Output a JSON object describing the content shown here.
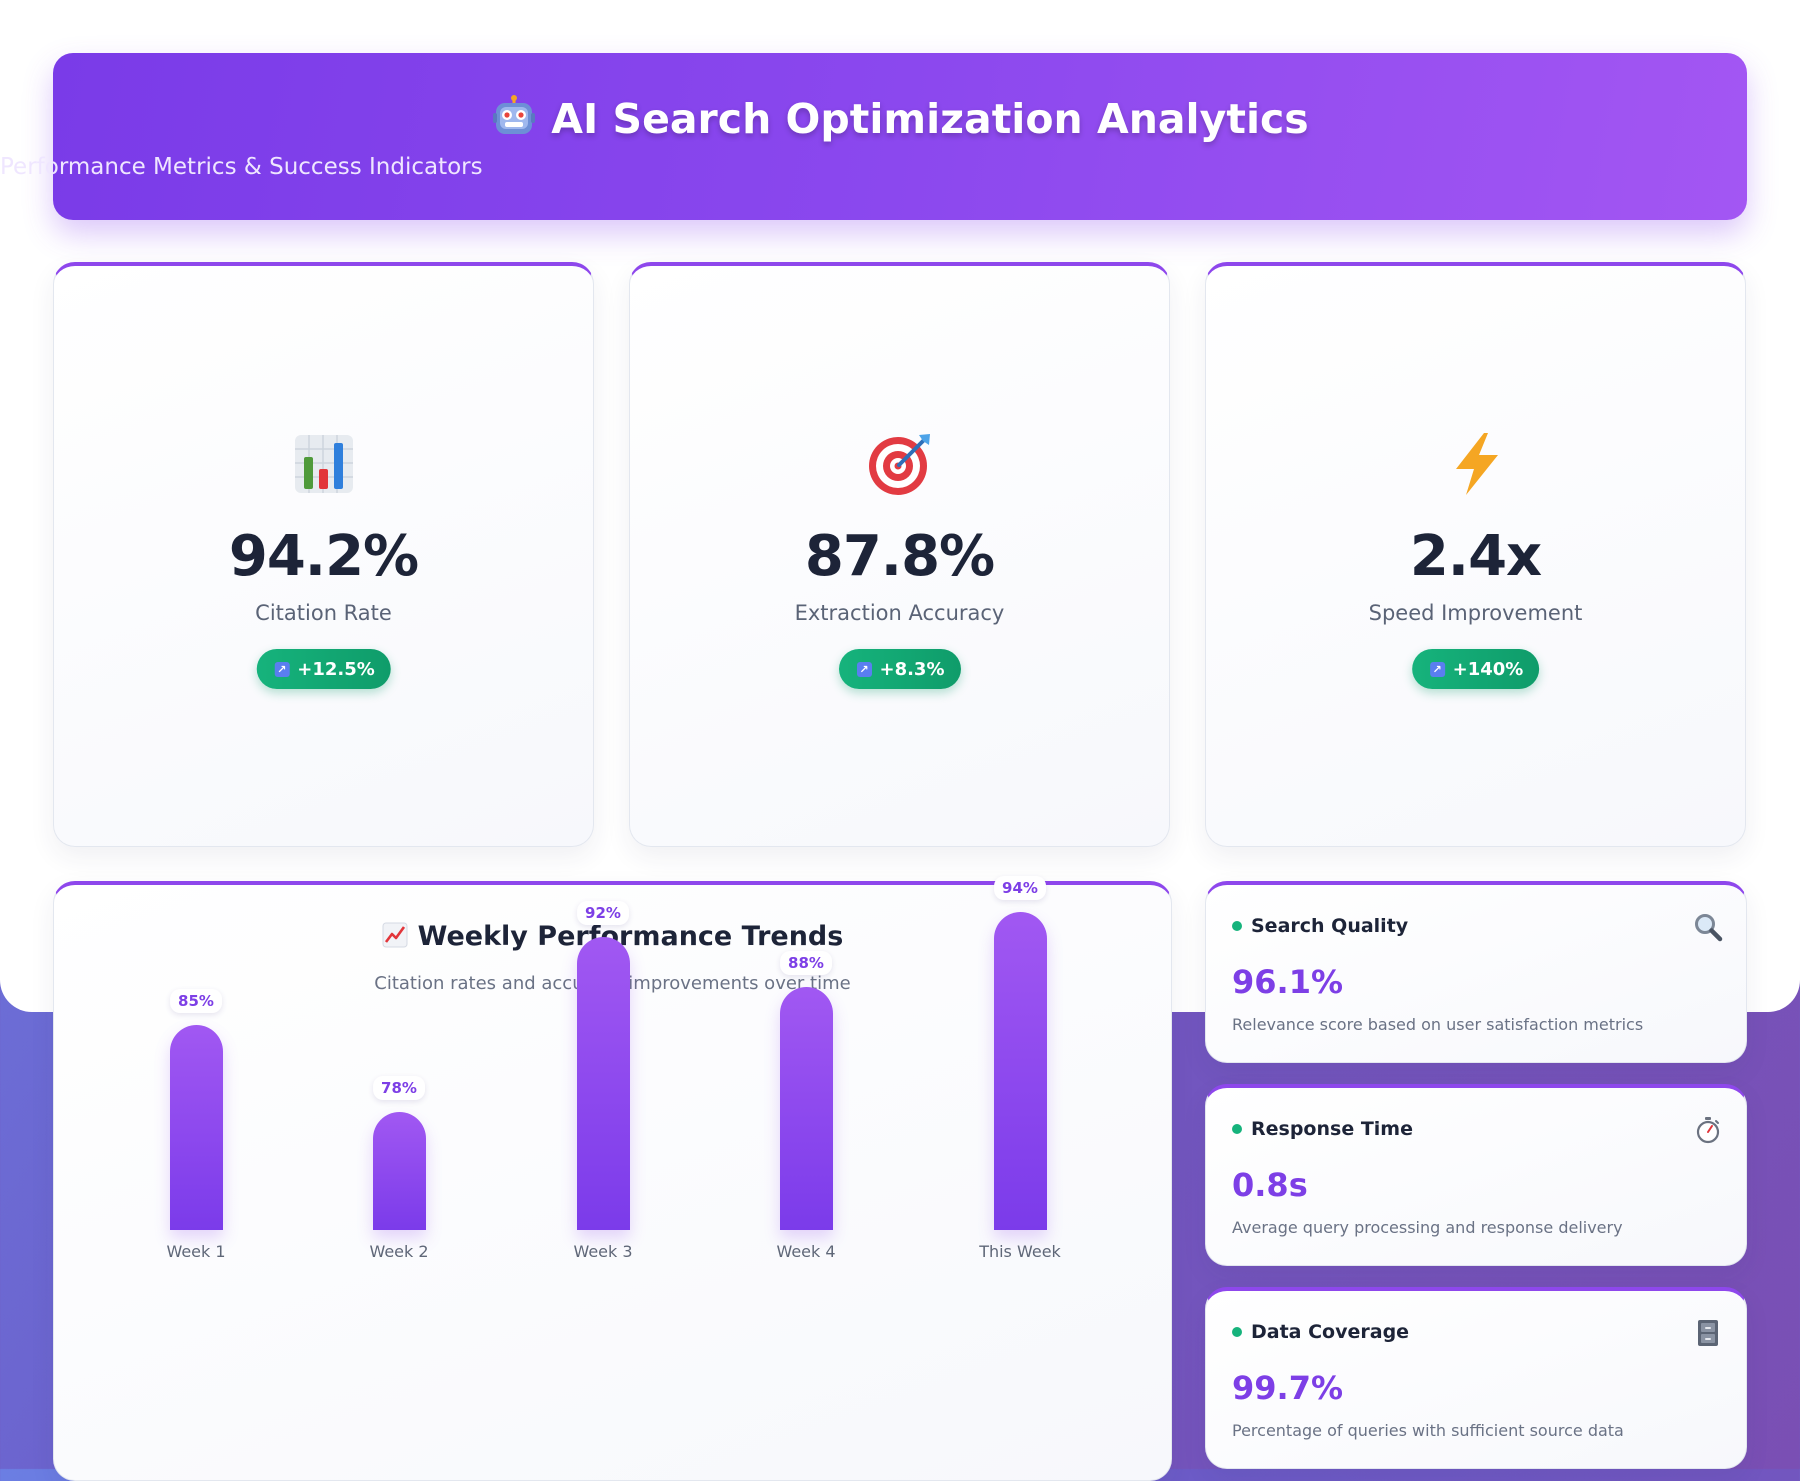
{
  "header": {
    "icon": "robot-icon",
    "title": "AI Search Optimization Analytics",
    "subtitle": "Performance Metrics & Success Indicators"
  },
  "kpis": [
    {
      "icon": "bar-chart-icon",
      "value": "94.2%",
      "label": "Citation Rate",
      "change": "+12.5%"
    },
    {
      "icon": "target-icon",
      "value": "87.8%",
      "label": "Extraction Accuracy",
      "change": "+8.3%"
    },
    {
      "icon": "lightning-icon",
      "value": "2.4x",
      "label": "Speed Improvement",
      "change": "+140%"
    }
  ],
  "trend": {
    "icon": "trend-up-icon",
    "title": "Weekly Performance Trends",
    "subtitle": "Citation rates and accuracy improvements over time"
  },
  "chart_data": {
    "type": "bar",
    "title": "Weekly Performance Trends",
    "categories": [
      "Week 1",
      "Week 2",
      "Week 3",
      "Week 4",
      "This Week"
    ],
    "values": [
      85,
      78,
      92,
      88,
      94
    ],
    "value_labels": [
      "85%",
      "78%",
      "92%",
      "88%",
      "94%"
    ],
    "grid": false,
    "legend": "none"
  },
  "stats": [
    {
      "icon": "magnifier-icon",
      "title": "Search Quality",
      "value": "96.1%",
      "description": "Relevance score based on user satisfaction metrics"
    },
    {
      "icon": "stopwatch-icon",
      "title": "Response Time",
      "value": "0.8s",
      "description": "Average query processing and response delivery"
    },
    {
      "icon": "file-cabinet-icon",
      "title": "Data Coverage",
      "value": "99.7%",
      "description": "Percentage of queries with sufficient source data"
    }
  ],
  "colors": {
    "accent": "#8b48ee",
    "positive": "#16b37c",
    "value_purple": "#7d3fe6",
    "text_dark": "#1d2438"
  }
}
